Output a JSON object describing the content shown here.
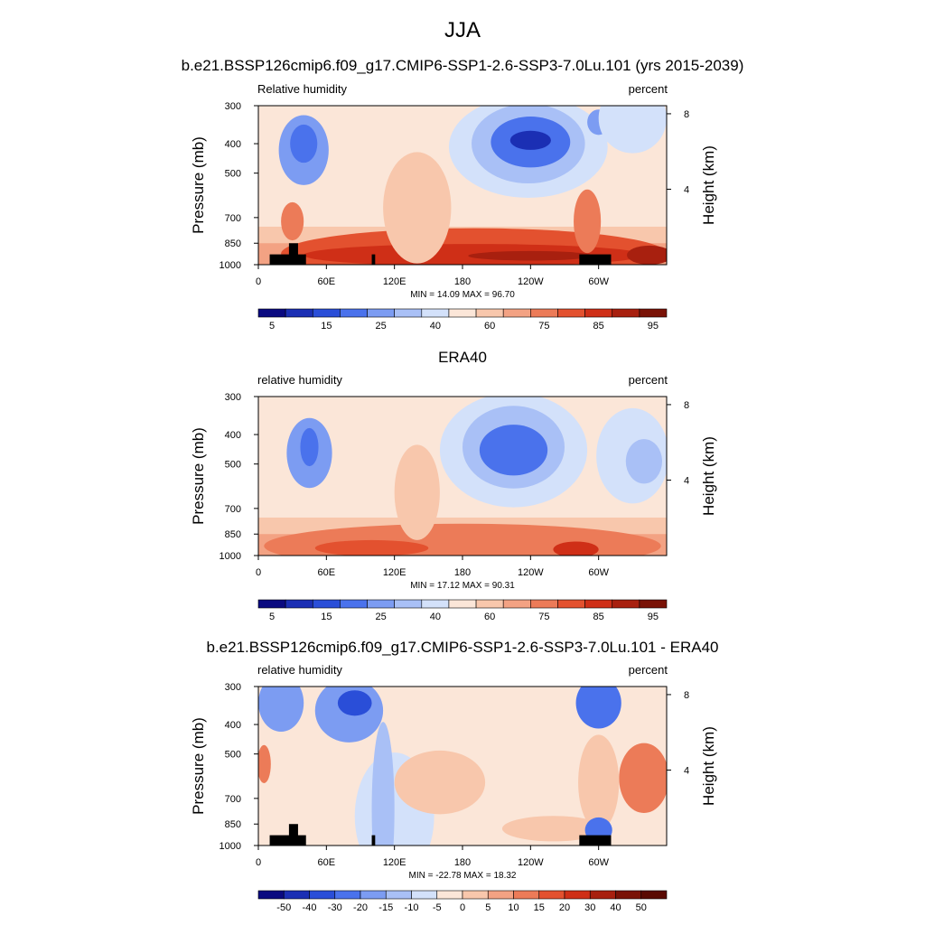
{
  "figure": {
    "title": "JJA",
    "yaxis_left_label": "Pressure (mb)",
    "yaxis_right_label": "Height (km)",
    "pressure_ticks": [
      "300",
      "400",
      "500",
      "700",
      "850",
      "1000"
    ],
    "height_ticks": [
      "8",
      "4"
    ],
    "lon_ticks": [
      "0",
      "60E",
      "120E",
      "180",
      "120W",
      "60W"
    ]
  },
  "panels": [
    {
      "title": "b.e21.BSSP126cmip6.f09_g17.CMIP6-SSP1-2.6-SSP3-7.0Lu.101 (yrs 2015-2039)",
      "left_label": "Relative humidity",
      "right_label": "percent",
      "stats": "MIN =  14.09  MAX =  96.70"
    },
    {
      "title": "ERA40",
      "left_label": "relative humidity",
      "right_label": "percent",
      "stats": "MIN =  17.12  MAX =  90.31"
    },
    {
      "title": "b.e21.BSSP126cmip6.f09_g17.CMIP6-SSP1-2.6-SSP3-7.0Lu.101 - ERA40",
      "left_label": "relative humidity",
      "right_label": "percent",
      "stats": "MIN = -22.78  MAX =  18.32"
    }
  ],
  "colorbars": [
    {
      "colors": [
        "#0a0a80",
        "#1b2fb4",
        "#2a4ed8",
        "#4a72ec",
        "#7c9cf2",
        "#a9c0f6",
        "#d3e1fa",
        "#fbe6d8",
        "#f8c7ac",
        "#f3a283",
        "#ec7b58",
        "#e3512f",
        "#cf2f17",
        "#a8200f",
        "#7a1206"
      ],
      "labels": [
        "5",
        "15",
        "25",
        "40",
        "60",
        "75",
        "85",
        "95"
      ]
    },
    {
      "colors": [
        "#0a0a80",
        "#1b2fb4",
        "#2a4ed8",
        "#4a72ec",
        "#7c9cf2",
        "#a9c0f6",
        "#d3e1fa",
        "#fbe6d8",
        "#f8c7ac",
        "#f3a283",
        "#ec7b58",
        "#e3512f",
        "#cf2f17",
        "#a8200f",
        "#7a1206"
      ],
      "labels": [
        "5",
        "15",
        "25",
        "40",
        "60",
        "75",
        "85",
        "95"
      ]
    },
    {
      "colors": [
        "#0a0a80",
        "#1b2fb4",
        "#2a4ed8",
        "#4a72ec",
        "#7c9cf2",
        "#a9c0f6",
        "#d3e1fa",
        "#fbe6d8",
        "#f8c7ac",
        "#f3a283",
        "#ec7b58",
        "#e3512f",
        "#cf2f17",
        "#a8200f",
        "#7a1206",
        "#5a0a02"
      ],
      "labels": [
        "-50",
        "-40",
        "-30",
        "-20",
        "-15",
        "-10",
        "-5",
        "0",
        "5",
        "10",
        "15",
        "20",
        "30",
        "40",
        "50"
      ]
    }
  ],
  "chart_data": [
    {
      "type": "heatmap",
      "title": "b.e21.BSSP126cmip6.f09_g17.CMIP6-SSP1-2.6-SSP3-7.0Lu.101 (yrs 2015-2039)",
      "xlabel": "",
      "ylabel": "Pressure (mb)",
      "y2label": "Height (km)",
      "xlim": [
        0,
        360
      ],
      "ylim": [
        1000,
        300
      ],
      "min": 14.09,
      "max": 96.7,
      "units": "percent",
      "field": [
        {
          "lon": 40,
          "p": 400,
          "value": 20
        },
        {
          "lon": 240,
          "p": 400,
          "value": 15
        },
        {
          "lon": 290,
          "p": 350,
          "value": 35
        },
        {
          "lon": 190,
          "p": 920,
          "value": 92
        },
        {
          "lon": 340,
          "p": 920,
          "value": 90
        },
        {
          "lon": 140,
          "p": 700,
          "value": 70
        }
      ],
      "topography_mask": [
        {
          "lon_start": 10,
          "lon_end": 42,
          "p_top": 925
        },
        {
          "lon_start": 27,
          "lon_end": 35,
          "p_top": 850
        },
        {
          "lon_start": 100,
          "lon_end": 103,
          "p_top": 925
        },
        {
          "lon_start": 283,
          "lon_end": 311,
          "p_top": 925
        }
      ]
    },
    {
      "type": "heatmap",
      "title": "ERA40",
      "xlabel": "",
      "ylabel": "Pressure (mb)",
      "y2label": "Height (km)",
      "xlim": [
        0,
        360
      ],
      "ylim": [
        1000,
        300
      ],
      "min": 17.12,
      "max": 90.31,
      "units": "percent",
      "field": [
        {
          "lon": 45,
          "p": 450,
          "value": 25
        },
        {
          "lon": 225,
          "p": 450,
          "value": 18
        },
        {
          "lon": 340,
          "p": 500,
          "value": 30
        },
        {
          "lon": 100,
          "p": 920,
          "value": 85
        },
        {
          "lon": 270,
          "p": 950,
          "value": 88
        }
      ],
      "topography_mask": []
    },
    {
      "type": "heatmap",
      "title": "b.e21.BSSP126cmip6.f09_g17.CMIP6-SSP1-2.6-SSP3-7.0Lu.101 - ERA40",
      "xlabel": "",
      "ylabel": "Pressure (mb)",
      "y2label": "Height (km)",
      "xlim": [
        0,
        360
      ],
      "ylim": [
        1000,
        300
      ],
      "min": -22.78,
      "max": 18.32,
      "units": "percent",
      "field": [
        {
          "lon": 20,
          "p": 350,
          "value": -20
        },
        {
          "lon": 80,
          "p": 350,
          "value": -22
        },
        {
          "lon": 300,
          "p": 350,
          "value": -20
        },
        {
          "lon": 5,
          "p": 530,
          "value": 15
        },
        {
          "lon": 340,
          "p": 580,
          "value": 18
        },
        {
          "lon": 160,
          "p": 630,
          "value": 10
        }
      ],
      "topography_mask": [
        {
          "lon_start": 10,
          "lon_end": 42,
          "p_top": 925
        },
        {
          "lon_start": 27,
          "lon_end": 35,
          "p_top": 850
        },
        {
          "lon_start": 100,
          "lon_end": 103,
          "p_top": 925
        },
        {
          "lon_start": 283,
          "lon_end": 311,
          "p_top": 925
        }
      ]
    }
  ]
}
